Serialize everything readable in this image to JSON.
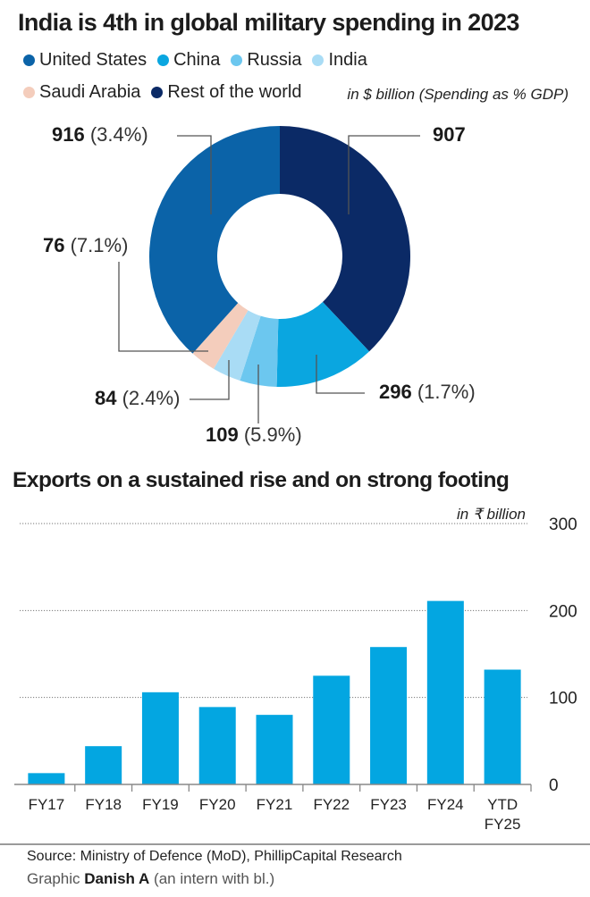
{
  "chart_data": [
    {
      "type": "pie",
      "variant": "donut",
      "title": "India is 4th in global military spending in 2023",
      "subtitle": "in $ billion (Spending as % GDP)",
      "legend": [
        "United States",
        "China",
        "Russia",
        "India",
        "Saudi Arabia",
        "Rest of the world"
      ],
      "legend_position": "top-left",
      "start": "top, clockwise",
      "slices": [
        {
          "name": "Rest of the world",
          "value": 907,
          "gdp_pct": null,
          "label_value": "907",
          "label_pct": "",
          "color": "#0b2a66"
        },
        {
          "name": "China",
          "value": 296,
          "gdp_pct": 1.7,
          "label_value": "296",
          "label_pct": "(1.7%)",
          "color": "#0aa6e0"
        },
        {
          "name": "Russia",
          "value": 109,
          "gdp_pct": 5.9,
          "label_value": "109",
          "label_pct": "(5.9%)",
          "color": "#6cc7ef"
        },
        {
          "name": "India",
          "value": 84,
          "gdp_pct": 2.4,
          "label_value": "84",
          "label_pct": "(2.4%)",
          "color": "#a9dcf5"
        },
        {
          "name": "Saudi Arabia",
          "value": 76,
          "gdp_pct": 7.1,
          "label_value": "76",
          "label_pct": "(7.1%)",
          "color": "#f4cdbc"
        },
        {
          "name": "United States",
          "value": 916,
          "gdp_pct": 3.4,
          "label_value": "916",
          "label_pct": "(3.4%)",
          "color": "#0b63a8"
        }
      ]
    },
    {
      "type": "bar",
      "title": "Exports on a sustained rise and on strong footing",
      "ylabel": "in ₹ billion",
      "xlabel": "",
      "categories": [
        "FY17",
        "FY18",
        "FY19",
        "FY20",
        "FY21",
        "FY22",
        "FY23",
        "FY24",
        "YTD FY25"
      ],
      "category_lines": [
        [
          "FY17"
        ],
        [
          "FY18"
        ],
        [
          "FY19"
        ],
        [
          "FY20"
        ],
        [
          "FY21"
        ],
        [
          "FY22"
        ],
        [
          "FY23"
        ],
        [
          "FY24"
        ],
        [
          "YTD",
          "FY25"
        ]
      ],
      "values": [
        13,
        44,
        106,
        89,
        80,
        125,
        158,
        211,
        132
      ],
      "ylim": [
        0,
        300
      ],
      "yticks": [
        "0",
        "100",
        "200",
        "300"
      ],
      "ytick_values": [
        0,
        100,
        200,
        300
      ],
      "yaxis_position": "right",
      "grid": true,
      "bar_color": "#03a6e1"
    }
  ],
  "header": {
    "title": "India is 4th in global military spending in 2023",
    "unit": "in $ billion (Spending as % GDP)"
  },
  "legend": {
    "row1": [
      {
        "label": "United States",
        "color": "#0b63a8"
      },
      {
        "label": "China",
        "color": "#0aa6e0"
      },
      {
        "label": "Russia",
        "color": "#6cc7ef"
      },
      {
        "label": "India",
        "color": "#a9dcf5"
      }
    ],
    "row2": [
      {
        "label": "Saudi Arabia",
        "color": "#f4cdbc"
      },
      {
        "label": "Rest of the world",
        "color": "#0b2a66"
      }
    ]
  },
  "callouts": {
    "us": {
      "value": "916",
      "pct": "(3.4%)"
    },
    "row": {
      "value": "907",
      "pct": ""
    },
    "saudi": {
      "value": "76",
      "pct": "(7.1%)"
    },
    "china": {
      "value": "296",
      "pct": "(1.7%)"
    },
    "india": {
      "value": "84",
      "pct": "(2.4%)"
    },
    "russia": {
      "value": "109",
      "pct": "(5.9%)"
    }
  },
  "section2": {
    "title": "Exports on a sustained rise and on strong footing",
    "unit": "in ₹ billion"
  },
  "footer": {
    "source": "Source: Ministry of Defence (MoD), PhillipCapital Research",
    "credit_prefix": "Graphic",
    "credit_name": "Danish A",
    "credit_suffix": "(an intern with bl.)"
  }
}
